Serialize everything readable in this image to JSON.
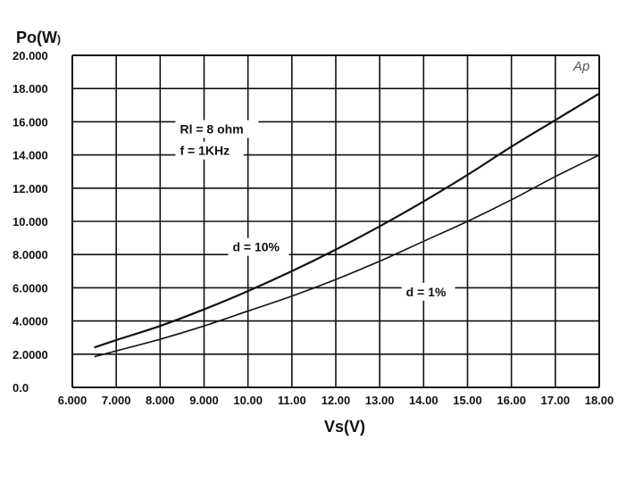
{
  "chart_data": {
    "type": "line",
    "title": "",
    "ylabel_main": "Po(W",
    "ylabel_close": ")",
    "xlabel": "Vs(V)",
    "xlim": [
      6,
      18
    ],
    "ylim": [
      0,
      20
    ],
    "grid": true,
    "x_ticks": [
      6,
      7,
      8,
      9,
      10,
      11,
      12,
      13,
      14,
      15,
      16,
      17,
      18
    ],
    "x_tick_labels": [
      "6.000",
      "7.000",
      "8.000",
      "9.000",
      "10.00",
      "11.00",
      "12.00",
      "13.00",
      "14.00",
      "15.00",
      "16.00",
      "17.00",
      "18.00"
    ],
    "y_ticks": [
      0,
      2,
      4,
      6,
      8,
      10,
      12,
      14,
      16,
      18,
      20
    ],
    "y_tick_labels": [
      "0.0",
      "2.0000",
      "4.0000",
      "6.0000",
      "8.0000",
      "10.000",
      "12.000",
      "14.000",
      "16.000",
      "18.000",
      "20.000"
    ],
    "series": [
      {
        "name": "d = 10%",
        "x": [
          6.5,
          7,
          8,
          9,
          10,
          11,
          12,
          13,
          14,
          15,
          16,
          17,
          18
        ],
        "y": [
          2.4,
          2.85,
          3.7,
          4.7,
          5.8,
          7.0,
          8.3,
          9.7,
          11.2,
          12.8,
          14.5,
          16.1,
          17.7
        ]
      },
      {
        "name": "d = 1%",
        "x": [
          6.5,
          7,
          8,
          9,
          10,
          11,
          12,
          13,
          14,
          15,
          16,
          17,
          18
        ],
        "y": [
          1.85,
          2.2,
          2.9,
          3.7,
          4.6,
          5.5,
          6.5,
          7.6,
          8.8,
          10.0,
          11.3,
          12.7,
          14.0
        ]
      }
    ],
    "annotations": [
      {
        "name": "rl-label",
        "text": "Rl = 8 ohm",
        "x": 8.45,
        "y": 15.4
      },
      {
        "name": "f-label",
        "text": "f = 1KHz",
        "x": 8.45,
        "y": 14.1
      },
      {
        "name": "d10-label",
        "text": "d = 10%",
        "x": 9.65,
        "y": 8.3
      },
      {
        "name": "d1-label",
        "text": "d = 1%",
        "x": 13.6,
        "y": 5.6
      }
    ],
    "corner_mark": "Ap"
  },
  "colors": {
    "line": "#111111",
    "grid": "#111111",
    "background": "#ffffff"
  }
}
